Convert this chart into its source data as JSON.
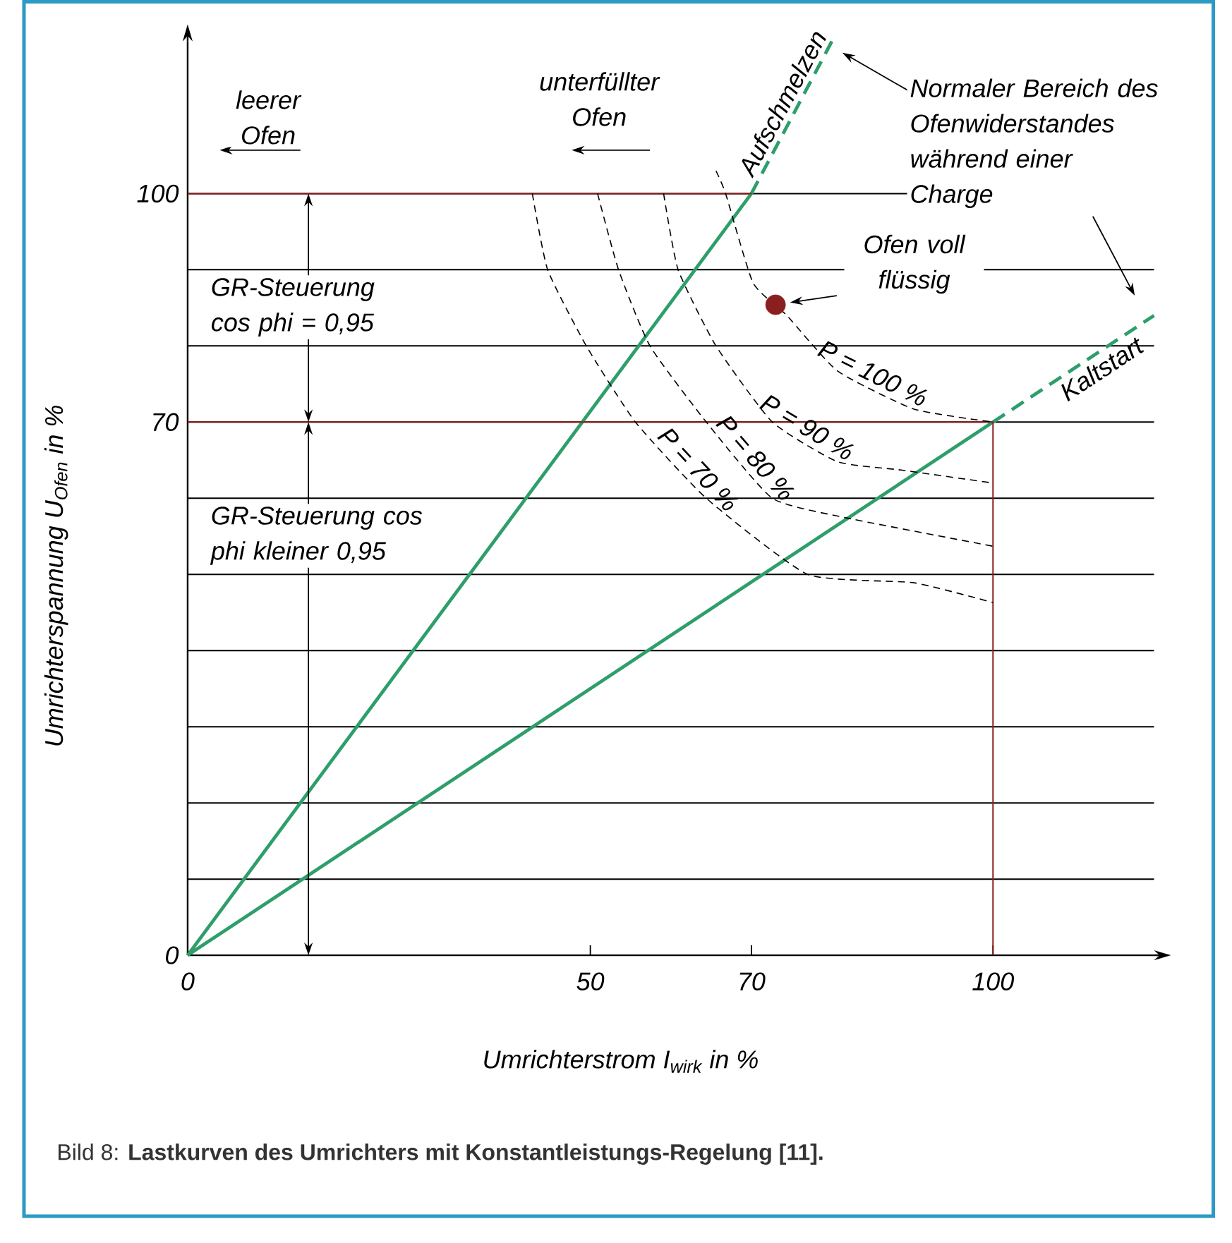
{
  "chart_data": {
    "type": "line",
    "xlabel": "Umrichterstrom I$_{wirk}$ in %",
    "ylabel": "Umrichterspannung U$_{Ofen}$ in %",
    "xlim": [
      0,
      120
    ],
    "ylim": [
      0,
      120
    ],
    "xticks": [
      0,
      50,
      70,
      100
    ],
    "yticks": [
      0,
      {
        "value": 10,
        "label": null
      },
      {
        "value": 20,
        "label": null
      },
      {
        "value": 30,
        "label": null
      },
      {
        "value": 40,
        "label": null
      },
      {
        "value": 50,
        "label": null
      },
      {
        "value": 60,
        "label": null
      },
      70,
      {
        "value": 80,
        "label": null
      },
      {
        "value": 90,
        "label": null
      },
      100
    ],
    "grid": "y",
    "series": [
      {
        "color": "#2e9e6b",
        "x": [
          0,
          70
        ],
        "values": [
          0,
          100
        ]
      },
      {
        "name": "Aufschmelzen",
        "color": "#2e9e6b",
        "line_style": "dashed",
        "x": [
          70,
          80
        ],
        "values": [
          100,
          120
        ]
      },
      {
        "color": "#2e9e6b",
        "x": [
          0,
          100
        ],
        "values": [
          0,
          70
        ]
      },
      {
        "name": "Kaltstart",
        "color": "#2e9e6b",
        "line_style": "dashed",
        "x": [
          100,
          120
        ],
        "values": [
          70,
          84
        ]
      },
      {
        "color": "#8b1e1e",
        "x": [
          0,
          70
        ],
        "values": [
          100,
          100
        ]
      },
      {
        "color": "#8b1e1e",
        "x": [
          0,
          100,
          100
        ],
        "values": [
          70,
          70,
          0
        ]
      },
      {
        "name": "P = 70 %",
        "color": "#000000",
        "line_style": "dashed",
        "x": [
          42.8,
          44.7,
          49.5,
          55.6,
          64.4,
          77,
          90.2,
          100
        ],
        "values": [
          100,
          90,
          80,
          70,
          60,
          50,
          48.9,
          46.3
        ]
      },
      {
        "name": "P = 80 %",
        "color": "#000000",
        "line_style": "dashed",
        "x": [
          50.9,
          53.5,
          57.4,
          64.4,
          72.6,
          81.9,
          100
        ],
        "values": [
          100,
          90,
          80,
          70,
          60,
          57.4,
          53.7
        ]
      },
      {
        "name": "P = 90 %",
        "color": "#000000",
        "line_style": "dashed",
        "x": [
          59.1,
          60.9,
          65.6,
          72.6,
          80.7,
          88.6,
          100
        ],
        "values": [
          100,
          90,
          80,
          70,
          64.8,
          63.7,
          62
        ]
      },
      {
        "name": "P = 100 %",
        "color": "#000000",
        "line_style": "dashed",
        "x": [
          65.6,
          66.8,
          70.2,
          74.4,
          80.7,
          90.2,
          100
        ],
        "values": [
          103,
          100,
          88.3,
          84,
          76.7,
          71.7,
          70
        ]
      },
      {
        "type": "scatter",
        "marker": "circle",
        "color": "#8b1e1e",
        "x": [
          73
        ],
        "values": [
          85.4
        ]
      }
    ],
    "annotations": [
      "leerer Ofen",
      "unterfüllter Ofen",
      "Normaler Bereich des Ofenwiderstandes während einer Charge",
      "Ofen voll flüssig",
      "GR-Steuerung cos phi = 0,95",
      "GR-Steuerung cos phi kleiner 0,95",
      "Bild 8: **Lastkurven des Umrichters mit Konstantleistungs-Regelung [11].**"
    ]
  }
}
